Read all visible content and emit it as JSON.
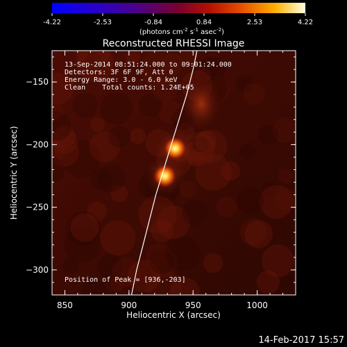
{
  "colorbar": {
    "ticks": [
      "-4.22",
      "-2.53",
      "-0.84",
      "0.84",
      "2.53",
      "4.22"
    ],
    "unit_main": "(photons cm",
    "unit_exp1": "-2",
    "unit_mid": " s",
    "unit_exp2": "-1",
    "unit_end": " asec",
    "unit_exp3": "-2",
    "unit_close": ")"
  },
  "plot": {
    "title": "Reconstructed RHESSI Image",
    "xlabel": "Heliocentric X (arcsec)",
    "ylabel": "Heliocentric Y (arcsec)",
    "xticks": [
      {
        "label": "850",
        "value": 850
      },
      {
        "label": "900",
        "value": 900
      },
      {
        "label": "950",
        "value": 950
      },
      {
        "label": "1000",
        "value": 1000
      }
    ],
    "yticks": [
      {
        "label": "−150",
        "value": -150
      },
      {
        "label": "−200",
        "value": -200
      },
      {
        "label": "−250",
        "value": -250
      },
      {
        "label": "−300",
        "value": -300
      }
    ],
    "xlim": [
      840,
      1030
    ],
    "ylim": [
      -320,
      -125
    ],
    "info_line1": "13-Sep-2014 08:51:24.000 to 09:01:24.000",
    "info_line2": "Detectors: 3F 6F 9F, Att 0",
    "info_line3": "Energy Range: 3.0 - 6.0 keV",
    "info_line4": "Clean    Total counts: 1.24E+05",
    "peak_label": "Position of Peak = [936,-203]"
  },
  "sources": [
    {
      "name": "upper-source",
      "x": 936,
      "y": -203
    },
    {
      "name": "lower-source",
      "x": 928,
      "y": -225
    }
  ],
  "limb_curve": [
    [
      902,
      -320
    ],
    [
      906,
      -300
    ],
    [
      911,
      -280
    ],
    [
      916,
      -260
    ],
    [
      921,
      -240
    ],
    [
      927,
      -220
    ],
    [
      933,
      -200
    ],
    [
      939,
      -180
    ],
    [
      945,
      -160
    ],
    [
      950,
      -140
    ],
    [
      953,
      -125
    ]
  ],
  "footer": {
    "timestamp": "14-Feb-2017 15:57"
  },
  "colors": {
    "background": "#000000",
    "text": "#ffffff"
  }
}
